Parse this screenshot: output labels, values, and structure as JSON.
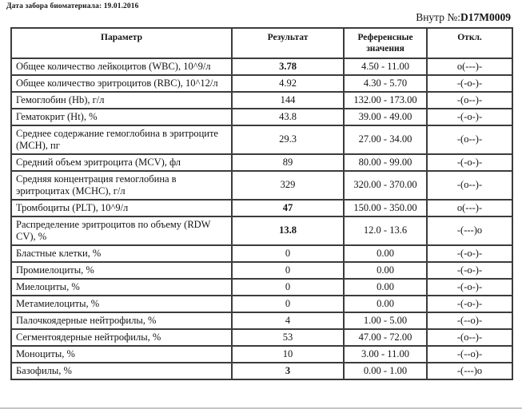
{
  "header": {
    "date_line": "Дата забора биоматериала: 19.01.2016",
    "internal_number_label": "Внутр №:",
    "internal_number_value": "D17M0009"
  },
  "table": {
    "headers": {
      "parameter": "Параметр",
      "result": "Результат",
      "reference": "Референсные значения",
      "deviation": "Откл."
    },
    "rows": [
      {
        "parameter": "Общее количество лейкоцитов (WBC), 10^9/л",
        "result": "3.78",
        "flagged": true,
        "reference": "4.50 - 11.00",
        "deviation": "o(---)-"
      },
      {
        "parameter": "Общее количество эритроцитов (RBC), 10^12/л",
        "result": "4.92",
        "flagged": false,
        "reference": "4.30 - 5.70",
        "deviation": "-(-o-)-"
      },
      {
        "parameter": "Гемоглобин (Hb), г/л",
        "result": "144",
        "flagged": false,
        "reference": "132.00 - 173.00",
        "deviation": "-(o--)-"
      },
      {
        "parameter": "Гематокрит (Ht), %",
        "result": "43.8",
        "flagged": false,
        "reference": "39.00 - 49.00",
        "deviation": "-(-o-)-"
      },
      {
        "parameter": "Среднее содержание гемоглобина в эритроците (MCH), пг",
        "result": "29.3",
        "flagged": false,
        "reference": "27.00 - 34.00",
        "deviation": "-(o--)-"
      },
      {
        "parameter": "Средний объем эритроцита (MCV), фл",
        "result": "89",
        "flagged": false,
        "reference": "80.00 - 99.00",
        "deviation": "-(-o-)-"
      },
      {
        "parameter": "Средняя концентрация гемоглобина в эритроцитах (MCHC), г/л",
        "result": "329",
        "flagged": false,
        "reference": "320.00 - 370.00",
        "deviation": "-(o--)-"
      },
      {
        "parameter": "Тромбоциты (PLT), 10^9/л",
        "result": "47",
        "flagged": true,
        "reference": "150.00 - 350.00",
        "deviation": "o(---)-"
      },
      {
        "parameter": "Распределение эритроцитов по объему (RDW CV), %",
        "result": "13.8",
        "flagged": true,
        "reference": "12.0 - 13.6",
        "deviation": "-(---)o"
      },
      {
        "parameter": "Бластные клетки, %",
        "result": "0",
        "flagged": false,
        "reference": "0.00",
        "deviation": "-(-o-)-"
      },
      {
        "parameter": "Промиелоциты, %",
        "result": "0",
        "flagged": false,
        "reference": "0.00",
        "deviation": "-(-o-)-"
      },
      {
        "parameter": "Миелоциты, %",
        "result": "0",
        "flagged": false,
        "reference": "0.00",
        "deviation": "-(-o-)-"
      },
      {
        "parameter": "Метамиелоциты, %",
        "result": "0",
        "flagged": false,
        "reference": "0.00",
        "deviation": "-(-o-)-"
      },
      {
        "parameter": "Палочкоядерные нейтрофилы, %",
        "result": "4",
        "flagged": false,
        "reference": "1.00 - 5.00",
        "deviation": "-(--o)-"
      },
      {
        "parameter": "Сегментоядерные нейтрофилы, %",
        "result": "53",
        "flagged": false,
        "reference": "47.00 - 72.00",
        "deviation": "-(o--)-"
      },
      {
        "parameter": "Моноциты, %",
        "result": "10",
        "flagged": false,
        "reference": "3.00 - 11.00",
        "deviation": "-(--o)-"
      },
      {
        "parameter": "Базофилы, %",
        "result": "3",
        "flagged": true,
        "reference": "0.00 - 1.00",
        "deviation": "-(---)o"
      }
    ]
  }
}
